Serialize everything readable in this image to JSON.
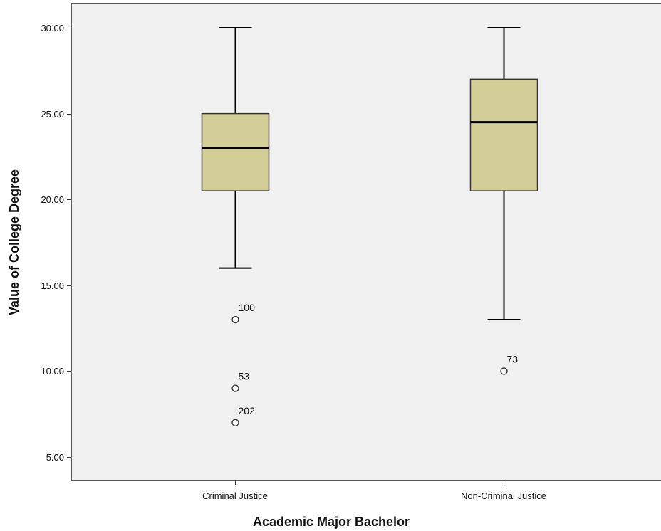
{
  "chart_data": {
    "type": "boxplot",
    "xlabel": "Academic Major Bachelor",
    "ylabel": "Value of College Degree",
    "ylim": [
      3.5,
      31.5
    ],
    "yticks": [
      5,
      10,
      15,
      20,
      25,
      30
    ],
    "ytick_labels": [
      "5.00",
      "10.00",
      "15.00",
      "20.00",
      "25.00",
      "30.00"
    ],
    "grid": false,
    "legend": "none",
    "categories": [
      "Criminal Justice",
      "Non-Criminal Justice"
    ],
    "boxes": [
      {
        "category": "Criminal Justice",
        "whisker_low": 16,
        "q1": 20.5,
        "median": 23,
        "q3": 25,
        "whisker_high": 30,
        "outliers": [
          {
            "value": 13,
            "label": "100"
          },
          {
            "value": 9,
            "label": "53"
          },
          {
            "value": 7,
            "label": "202"
          }
        ]
      },
      {
        "category": "Non-Criminal Justice",
        "whisker_low": 13,
        "q1": 20.5,
        "median": 24.5,
        "q3": 27,
        "whisker_high": 30,
        "outliers": [
          {
            "value": 10,
            "label": "73"
          }
        ]
      }
    ],
    "colors": {
      "plot_background": "#f0f0f0",
      "box_fill": "#d3ce97",
      "line": "#000000",
      "frame": "#5a5a5a"
    }
  }
}
